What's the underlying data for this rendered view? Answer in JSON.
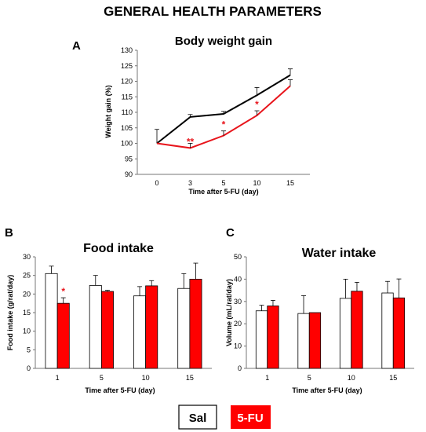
{
  "figure": {
    "title": "GENERAL HEALTH PARAMETERS",
    "panel_letters": [
      "A",
      "B",
      "C"
    ],
    "legend": [
      {
        "label": "Sal",
        "color": "#ffffff"
      },
      {
        "label": "5-FU",
        "color": "#ff0000"
      }
    ]
  },
  "colors": {
    "sal": "#000000",
    "fu": "#e8141b",
    "sal_fill": "#ffffff",
    "fu_fill": "#ff0000"
  },
  "chart_data": [
    {
      "type": "line",
      "title": "Body weight gain",
      "xlabel": "Time after 5-FU (day)",
      "ylabel": "Weight gain (%)",
      "categories": [
        "0",
        "3",
        "5",
        "10",
        "15"
      ],
      "ylim": [
        90,
        130
      ],
      "yticks": [
        "90",
        "95",
        "100",
        "105",
        "110",
        "115",
        "120",
        "125",
        "130"
      ],
      "series": [
        {
          "name": "Sal",
          "values": [
            100,
            108.5,
            109.5,
            115.5,
            122
          ],
          "errors": [
            4.5,
            0.8,
            0.8,
            2.5,
            2.0
          ]
        },
        {
          "name": "5-FU",
          "values": [
            100,
            98.5,
            102.5,
            109,
            118.5
          ],
          "errors": [
            0,
            1.5,
            1.5,
            1.5,
            2.0
          ]
        }
      ],
      "annotations": [
        {
          "x": "3",
          "text": "**"
        },
        {
          "x": "5",
          "text": "*"
        },
        {
          "x": "10",
          "text": "*"
        }
      ]
    },
    {
      "type": "bar",
      "title": "Food intake",
      "xlabel": "Time after 5-FU (day)",
      "ylabel": "Food intake (g/rat/day)",
      "categories": [
        "1",
        "5",
        "10",
        "15"
      ],
      "ylim": [
        0,
        30
      ],
      "yticks": [
        "0",
        "5",
        "10",
        "15",
        "20",
        "25",
        "30"
      ],
      "series": [
        {
          "name": "Sal",
          "values": [
            25.5,
            22.3,
            19.5,
            21.5
          ],
          "errors": [
            2.0,
            2.7,
            2.5,
            4.0
          ]
        },
        {
          "name": "5-FU",
          "values": [
            17.5,
            20.7,
            22.2,
            24.0
          ],
          "errors": [
            1.5,
            0.3,
            1.4,
            4.3
          ]
        }
      ],
      "annotations": [
        {
          "x": "1",
          "text": "*"
        }
      ]
    },
    {
      "type": "bar",
      "title": "Water intake",
      "xlabel": "Time after 5-FU (day)",
      "ylabel": "Volume (mL/rat/day)",
      "categories": [
        "1",
        "5",
        "10",
        "15"
      ],
      "ylim": [
        0,
        50
      ],
      "yticks": [
        "0",
        "10",
        "20",
        "30",
        "40",
        "50"
      ],
      "series": [
        {
          "name": "Sal",
          "values": [
            25.8,
            24.6,
            31.4,
            33.8
          ],
          "errors": [
            2.5,
            8.0,
            8.6,
            5.2
          ]
        },
        {
          "name": "5-FU",
          "values": [
            28.0,
            25.0,
            34.6,
            31.6
          ],
          "errors": [
            2.5,
            0,
            4.0,
            8.5
          ]
        }
      ],
      "annotations": []
    }
  ]
}
